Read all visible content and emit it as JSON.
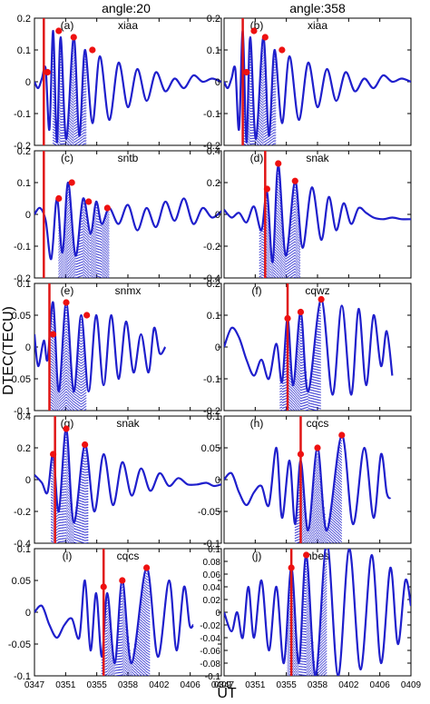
{
  "figure": {
    "column_titles": [
      "angle:20",
      "angle:358"
    ],
    "xlabel": "UT",
    "ylabel": "DTEC(TECU)",
    "x_tick_labels": [
      "0347",
      "0351",
      "0355",
      "0358",
      "0402",
      "0406",
      "0409"
    ],
    "colors": {
      "curve": "#1f1fcc",
      "marker": "#ee1111",
      "vline": "#e01515"
    }
  },
  "chart_data": [
    {
      "type": "line",
      "panel": "(a)",
      "station": "xiaa",
      "ylim": [
        -0.2,
        0.2
      ],
      "yticks": [
        "-0.2",
        "-0.1",
        "0",
        "0.1",
        "0.2"
      ],
      "vline_x": 0.05,
      "ridge": {
        "t0": 0.1,
        "t1": 0.28
      },
      "markers": [
        {
          "x": 0.07,
          "y": 0.03
        },
        {
          "x": 0.13,
          "y": 0.16
        },
        {
          "x": 0.21,
          "y": 0.14
        },
        {
          "x": 0.31,
          "y": 0.1
        }
      ],
      "samples": [
        [
          0.0,
          0.0
        ],
        [
          0.02,
          -0.02
        ],
        [
          0.04,
          0.01
        ],
        [
          0.06,
          0.04
        ],
        [
          0.08,
          -0.15
        ],
        [
          0.1,
          0.16
        ],
        [
          0.12,
          -0.19
        ],
        [
          0.14,
          0.14
        ],
        [
          0.17,
          -0.18
        ],
        [
          0.21,
          0.14
        ],
        [
          0.24,
          -0.17
        ],
        [
          0.27,
          0.1
        ],
        [
          0.31,
          -0.13
        ],
        [
          0.35,
          0.08
        ],
        [
          0.4,
          -0.12
        ],
        [
          0.45,
          0.06
        ],
        [
          0.5,
          -0.08
        ],
        [
          0.55,
          0.04
        ],
        [
          0.6,
          -0.06
        ],
        [
          0.65,
          0.03
        ],
        [
          0.7,
          -0.03
        ],
        [
          0.75,
          0.01
        ],
        [
          0.8,
          -0.02
        ],
        [
          0.85,
          0.02
        ],
        [
          0.9,
          0.0
        ],
        [
          0.95,
          0.01
        ],
        [
          1.0,
          0.0
        ]
      ]
    },
    {
      "type": "line",
      "panel": "(b)",
      "station": "xiaa",
      "ylim": [
        -0.2,
        0.2
      ],
      "yticks": [
        "-0.2",
        "-0.1",
        "0",
        "0.1",
        "0.2"
      ],
      "vline_x": 0.1,
      "ridge": {
        "t0": 0.1,
        "t1": 0.28
      },
      "markers": [
        {
          "x": 0.12,
          "y": 0.03
        },
        {
          "x": 0.16,
          "y": 0.16
        },
        {
          "x": 0.22,
          "y": 0.14
        },
        {
          "x": 0.31,
          "y": 0.1
        }
      ],
      "samples": [
        [
          0.0,
          0.0
        ],
        [
          0.02,
          -0.02
        ],
        [
          0.04,
          0.01
        ],
        [
          0.06,
          0.04
        ],
        [
          0.08,
          -0.15
        ],
        [
          0.1,
          0.16
        ],
        [
          0.12,
          -0.19
        ],
        [
          0.14,
          0.14
        ],
        [
          0.17,
          -0.18
        ],
        [
          0.21,
          0.14
        ],
        [
          0.24,
          -0.17
        ],
        [
          0.27,
          0.1
        ],
        [
          0.31,
          -0.13
        ],
        [
          0.35,
          0.08
        ],
        [
          0.4,
          -0.12
        ],
        [
          0.45,
          0.06
        ],
        [
          0.5,
          -0.08
        ],
        [
          0.55,
          0.04
        ],
        [
          0.6,
          -0.06
        ],
        [
          0.65,
          0.03
        ],
        [
          0.7,
          -0.03
        ],
        [
          0.75,
          0.01
        ],
        [
          0.8,
          -0.02
        ],
        [
          0.85,
          0.02
        ],
        [
          0.9,
          0.0
        ],
        [
          0.95,
          0.01
        ],
        [
          1.0,
          0.0
        ]
      ]
    },
    {
      "type": "line",
      "panel": "(c)",
      "station": "sntb",
      "ylim": [
        -0.2,
        0.2
      ],
      "yticks": [
        "-0.2",
        "-0.1",
        "0",
        "0.1",
        "0.2"
      ],
      "vline_x": 0.05,
      "ridge": {
        "t0": 0.13,
        "t1": 0.4
      },
      "markers": [
        {
          "x": 0.13,
          "y": 0.05
        },
        {
          "x": 0.2,
          "y": 0.1
        },
        {
          "x": 0.29,
          "y": 0.04
        },
        {
          "x": 0.39,
          "y": 0.02
        }
      ],
      "samples": [
        [
          0.0,
          0.0
        ],
        [
          0.03,
          0.02
        ],
        [
          0.06,
          -0.02
        ],
        [
          0.09,
          -0.14
        ],
        [
          0.12,
          0.05
        ],
        [
          0.15,
          -0.12
        ],
        [
          0.18,
          0.1
        ],
        [
          0.22,
          -0.13
        ],
        [
          0.26,
          0.05
        ],
        [
          0.3,
          -0.06
        ],
        [
          0.33,
          0.04
        ],
        [
          0.36,
          -0.03
        ],
        [
          0.4,
          0.02
        ],
        [
          0.45,
          -0.03
        ],
        [
          0.5,
          0.03
        ],
        [
          0.55,
          -0.05
        ],
        [
          0.6,
          0.02
        ],
        [
          0.65,
          -0.04
        ],
        [
          0.7,
          0.04
        ],
        [
          0.75,
          -0.02
        ],
        [
          0.8,
          0.05
        ],
        [
          0.85,
          -0.03
        ],
        [
          0.9,
          0.02
        ],
        [
          0.95,
          -0.01
        ],
        [
          1.0,
          0.01
        ]
      ]
    },
    {
      "type": "line",
      "panel": "(d)",
      "station": "snak",
      "ylim": [
        -0.4,
        0.4
      ],
      "yticks": [
        "-0.4",
        "-0.2",
        "0",
        "0.2",
        "0.4"
      ],
      "vline_x": 0.22,
      "ridge": {
        "t0": 0.19,
        "t1": 0.41
      },
      "markers": [
        {
          "x": 0.23,
          "y": 0.16
        },
        {
          "x": 0.29,
          "y": 0.32
        },
        {
          "x": 0.38,
          "y": 0.21
        }
      ],
      "samples": [
        [
          0.0,
          0.03
        ],
        [
          0.04,
          -0.02
        ],
        [
          0.08,
          0.01
        ],
        [
          0.12,
          -0.05
        ],
        [
          0.16,
          0.05
        ],
        [
          0.2,
          -0.1
        ],
        [
          0.23,
          0.14
        ],
        [
          0.26,
          -0.3
        ],
        [
          0.29,
          0.31
        ],
        [
          0.33,
          -0.26
        ],
        [
          0.38,
          0.21
        ],
        [
          0.42,
          -0.21
        ],
        [
          0.47,
          0.17
        ],
        [
          0.52,
          -0.16
        ],
        [
          0.56,
          0.11
        ],
        [
          0.6,
          -0.1
        ],
        [
          0.64,
          0.07
        ],
        [
          0.68,
          -0.06
        ],
        [
          0.72,
          0.04
        ],
        [
          0.76,
          0.01
        ],
        [
          0.8,
          -0.02
        ],
        [
          0.85,
          -0.03
        ],
        [
          0.9,
          -0.02
        ],
        [
          0.95,
          -0.03
        ],
        [
          1.0,
          -0.03
        ]
      ]
    },
    {
      "type": "line",
      "panel": "(e)",
      "station": "snmx",
      "ylim": [
        -0.1,
        0.1
      ],
      "yticks": [
        "-0.1",
        "-0.05",
        "0",
        "0.05",
        "0.1"
      ],
      "vline_x": 0.08,
      "ridge": {
        "t0": 0.08,
        "t1": 0.28
      },
      "markers": [
        {
          "x": 0.1,
          "y": 0.02
        },
        {
          "x": 0.17,
          "y": 0.07
        },
        {
          "x": 0.28,
          "y": 0.05
        }
      ],
      "samples": [
        [
          0.0,
          0.02
        ],
        [
          0.02,
          -0.03
        ],
        [
          0.05,
          0.01
        ],
        [
          0.07,
          -0.02
        ],
        [
          0.1,
          0.07
        ],
        [
          0.13,
          -0.07
        ],
        [
          0.17,
          0.07
        ],
        [
          0.21,
          -0.07
        ],
        [
          0.25,
          0.05
        ],
        [
          0.29,
          -0.07
        ],
        [
          0.33,
          0.05
        ],
        [
          0.37,
          -0.06
        ],
        [
          0.41,
          0.05
        ],
        [
          0.45,
          -0.05
        ],
        [
          0.49,
          0.04
        ],
        [
          0.53,
          -0.04
        ],
        [
          0.57,
          0.02
        ],
        [
          0.61,
          -0.04
        ],
        [
          0.64,
          0.03
        ],
        [
          0.67,
          -0.01
        ],
        [
          0.7,
          0.0
        ]
      ]
    },
    {
      "type": "line",
      "panel": "(f)",
      "station": "cqwz",
      "ylim": [
        -0.2,
        0.2
      ],
      "yticks": [
        "-0.2",
        "-0.1",
        "0",
        "0.1",
        "0.2"
      ],
      "vline_x": 0.34,
      "ridge": {
        "t0": 0.3,
        "t1": 0.52
      },
      "markers": [
        {
          "x": 0.34,
          "y": 0.09
        },
        {
          "x": 0.41,
          "y": 0.11
        },
        {
          "x": 0.52,
          "y": 0.15
        }
      ],
      "samples": [
        [
          0.0,
          0.0
        ],
        [
          0.04,
          0.06
        ],
        [
          0.08,
          0.03
        ],
        [
          0.12,
          -0.04
        ],
        [
          0.16,
          -0.09
        ],
        [
          0.2,
          -0.04
        ],
        [
          0.24,
          -0.1
        ],
        [
          0.28,
          0.01
        ],
        [
          0.31,
          -0.11
        ],
        [
          0.34,
          0.09
        ],
        [
          0.37,
          -0.12
        ],
        [
          0.41,
          0.11
        ],
        [
          0.45,
          -0.14
        ],
        [
          0.52,
          0.15
        ],
        [
          0.58,
          -0.15
        ],
        [
          0.63,
          0.13
        ],
        [
          0.68,
          -0.15
        ],
        [
          0.72,
          0.12
        ],
        [
          0.76,
          -0.12
        ],
        [
          0.8,
          0.1
        ],
        [
          0.84,
          -0.06
        ],
        [
          0.87,
          0.05
        ],
        [
          0.9,
          -0.09
        ]
      ]
    },
    {
      "type": "line",
      "panel": "(g)",
      "station": "snak",
      "ylim": [
        -0.4,
        0.4
      ],
      "yticks": [
        "-0.4",
        "-0.2",
        "0",
        "0.2",
        "0.4"
      ],
      "vline_x": 0.11,
      "ridge": {
        "t0": 0.09,
        "t1": 0.29
      },
      "markers": [
        {
          "x": 0.1,
          "y": 0.16
        },
        {
          "x": 0.17,
          "y": 0.32
        },
        {
          "x": 0.27,
          "y": 0.22
        }
      ],
      "samples": [
        [
          0.0,
          0.03
        ],
        [
          0.04,
          -0.02
        ],
        [
          0.07,
          -0.08
        ],
        [
          0.1,
          0.16
        ],
        [
          0.13,
          -0.2
        ],
        [
          0.17,
          0.32
        ],
        [
          0.21,
          -0.27
        ],
        [
          0.27,
          0.22
        ],
        [
          0.32,
          -0.2
        ],
        [
          0.37,
          0.16
        ],
        [
          0.42,
          -0.16
        ],
        [
          0.47,
          0.11
        ],
        [
          0.52,
          -0.1
        ],
        [
          0.57,
          0.07
        ],
        [
          0.62,
          -0.07
        ],
        [
          0.67,
          0.04
        ],
        [
          0.72,
          -0.04
        ],
        [
          0.77,
          0.01
        ],
        [
          0.82,
          -0.03
        ],
        [
          0.87,
          -0.03
        ],
        [
          0.92,
          -0.02
        ],
        [
          0.96,
          -0.04
        ],
        [
          1.0,
          -0.03
        ]
      ]
    },
    {
      "type": "line",
      "panel": "(h)",
      "station": "cqcs",
      "ylim": [
        -0.1,
        0.1
      ],
      "yticks": [
        "-0.1",
        "-0.05",
        "0",
        "0.05",
        "0.1"
      ],
      "vline_x": 0.41,
      "ridge": {
        "t0": 0.38,
        "t1": 0.63
      },
      "markers": [
        {
          "x": 0.41,
          "y": 0.04
        },
        {
          "x": 0.5,
          "y": 0.05
        },
        {
          "x": 0.63,
          "y": 0.07
        }
      ],
      "samples": [
        [
          0.0,
          0.0
        ],
        [
          0.04,
          0.01
        ],
        [
          0.08,
          -0.02
        ],
        [
          0.12,
          -0.04
        ],
        [
          0.16,
          -0.02
        ],
        [
          0.2,
          -0.01
        ],
        [
          0.24,
          -0.04
        ],
        [
          0.28,
          0.05
        ],
        [
          0.31,
          -0.06
        ],
        [
          0.35,
          0.03
        ],
        [
          0.38,
          -0.07
        ],
        [
          0.41,
          0.03
        ],
        [
          0.45,
          -0.08
        ],
        [
          0.5,
          0.05
        ],
        [
          0.55,
          -0.08
        ],
        [
          0.63,
          0.07
        ],
        [
          0.69,
          -0.07
        ],
        [
          0.75,
          0.05
        ],
        [
          0.8,
          -0.06
        ],
        [
          0.84,
          0.04
        ],
        [
          0.87,
          -0.02
        ],
        [
          0.89,
          -0.03
        ]
      ]
    },
    {
      "type": "line",
      "panel": "(i)",
      "station": "cqcs",
      "ylim": [
        -0.1,
        0.1
      ],
      "yticks": [
        "-0.1",
        "-0.05",
        "0",
        "0.05",
        "0.1"
      ],
      "vline_x": 0.37,
      "ridge": {
        "t0": 0.36,
        "t1": 0.62
      },
      "markers": [
        {
          "x": 0.37,
          "y": 0.04
        },
        {
          "x": 0.47,
          "y": 0.05
        },
        {
          "x": 0.6,
          "y": 0.07
        }
      ],
      "samples": [
        [
          0.0,
          0.0
        ],
        [
          0.04,
          0.01
        ],
        [
          0.08,
          -0.02
        ],
        [
          0.12,
          -0.04
        ],
        [
          0.16,
          -0.02
        ],
        [
          0.2,
          -0.01
        ],
        [
          0.24,
          -0.04
        ],
        [
          0.27,
          0.05
        ],
        [
          0.3,
          -0.06
        ],
        [
          0.33,
          0.03
        ],
        [
          0.36,
          -0.07
        ],
        [
          0.39,
          0.03
        ],
        [
          0.43,
          -0.08
        ],
        [
          0.47,
          0.05
        ],
        [
          0.52,
          -0.08
        ],
        [
          0.6,
          0.07
        ],
        [
          0.66,
          -0.07
        ],
        [
          0.72,
          0.05
        ],
        [
          0.76,
          -0.06
        ],
        [
          0.8,
          0.04
        ],
        [
          0.83,
          -0.02
        ],
        [
          0.85,
          -0.02
        ]
      ]
    },
    {
      "type": "line",
      "panel": "(j)",
      "station": "hbes",
      "ylim": [
        -0.1,
        0.1
      ],
      "yticks": [
        "-0.1",
        "-0.08",
        "-0.06",
        "-0.04",
        "-0.02",
        "0",
        "0.02",
        "0.04",
        "0.06",
        "0.08",
        "0.1"
      ],
      "vline_x": 0.36,
      "ridge": {
        "t0": 0.34,
        "t1": 0.55
      },
      "markers": [
        {
          "x": 0.36,
          "y": 0.07
        },
        {
          "x": 0.44,
          "y": 0.09
        },
        {
          "x": 0.55,
          "y": 0.11
        }
      ],
      "samples": [
        [
          0.0,
          0.0
        ],
        [
          0.04,
          -0.03
        ],
        [
          0.07,
          0.0
        ],
        [
          0.1,
          -0.04
        ],
        [
          0.13,
          0.04
        ],
        [
          0.16,
          -0.04
        ],
        [
          0.2,
          0.05
        ],
        [
          0.24,
          -0.06
        ],
        [
          0.28,
          0.04
        ],
        [
          0.32,
          -0.08
        ],
        [
          0.36,
          0.07
        ],
        [
          0.4,
          -0.08
        ],
        [
          0.44,
          0.09
        ],
        [
          0.49,
          -0.1
        ],
        [
          0.55,
          0.11
        ],
        [
          0.61,
          -0.1
        ],
        [
          0.67,
          0.1
        ],
        [
          0.73,
          -0.09
        ],
        [
          0.79,
          0.09
        ],
        [
          0.84,
          -0.08
        ],
        [
          0.89,
          0.07
        ],
        [
          0.93,
          -0.05
        ],
        [
          0.97,
          0.05
        ],
        [
          1.0,
          0.01
        ]
      ]
    }
  ]
}
